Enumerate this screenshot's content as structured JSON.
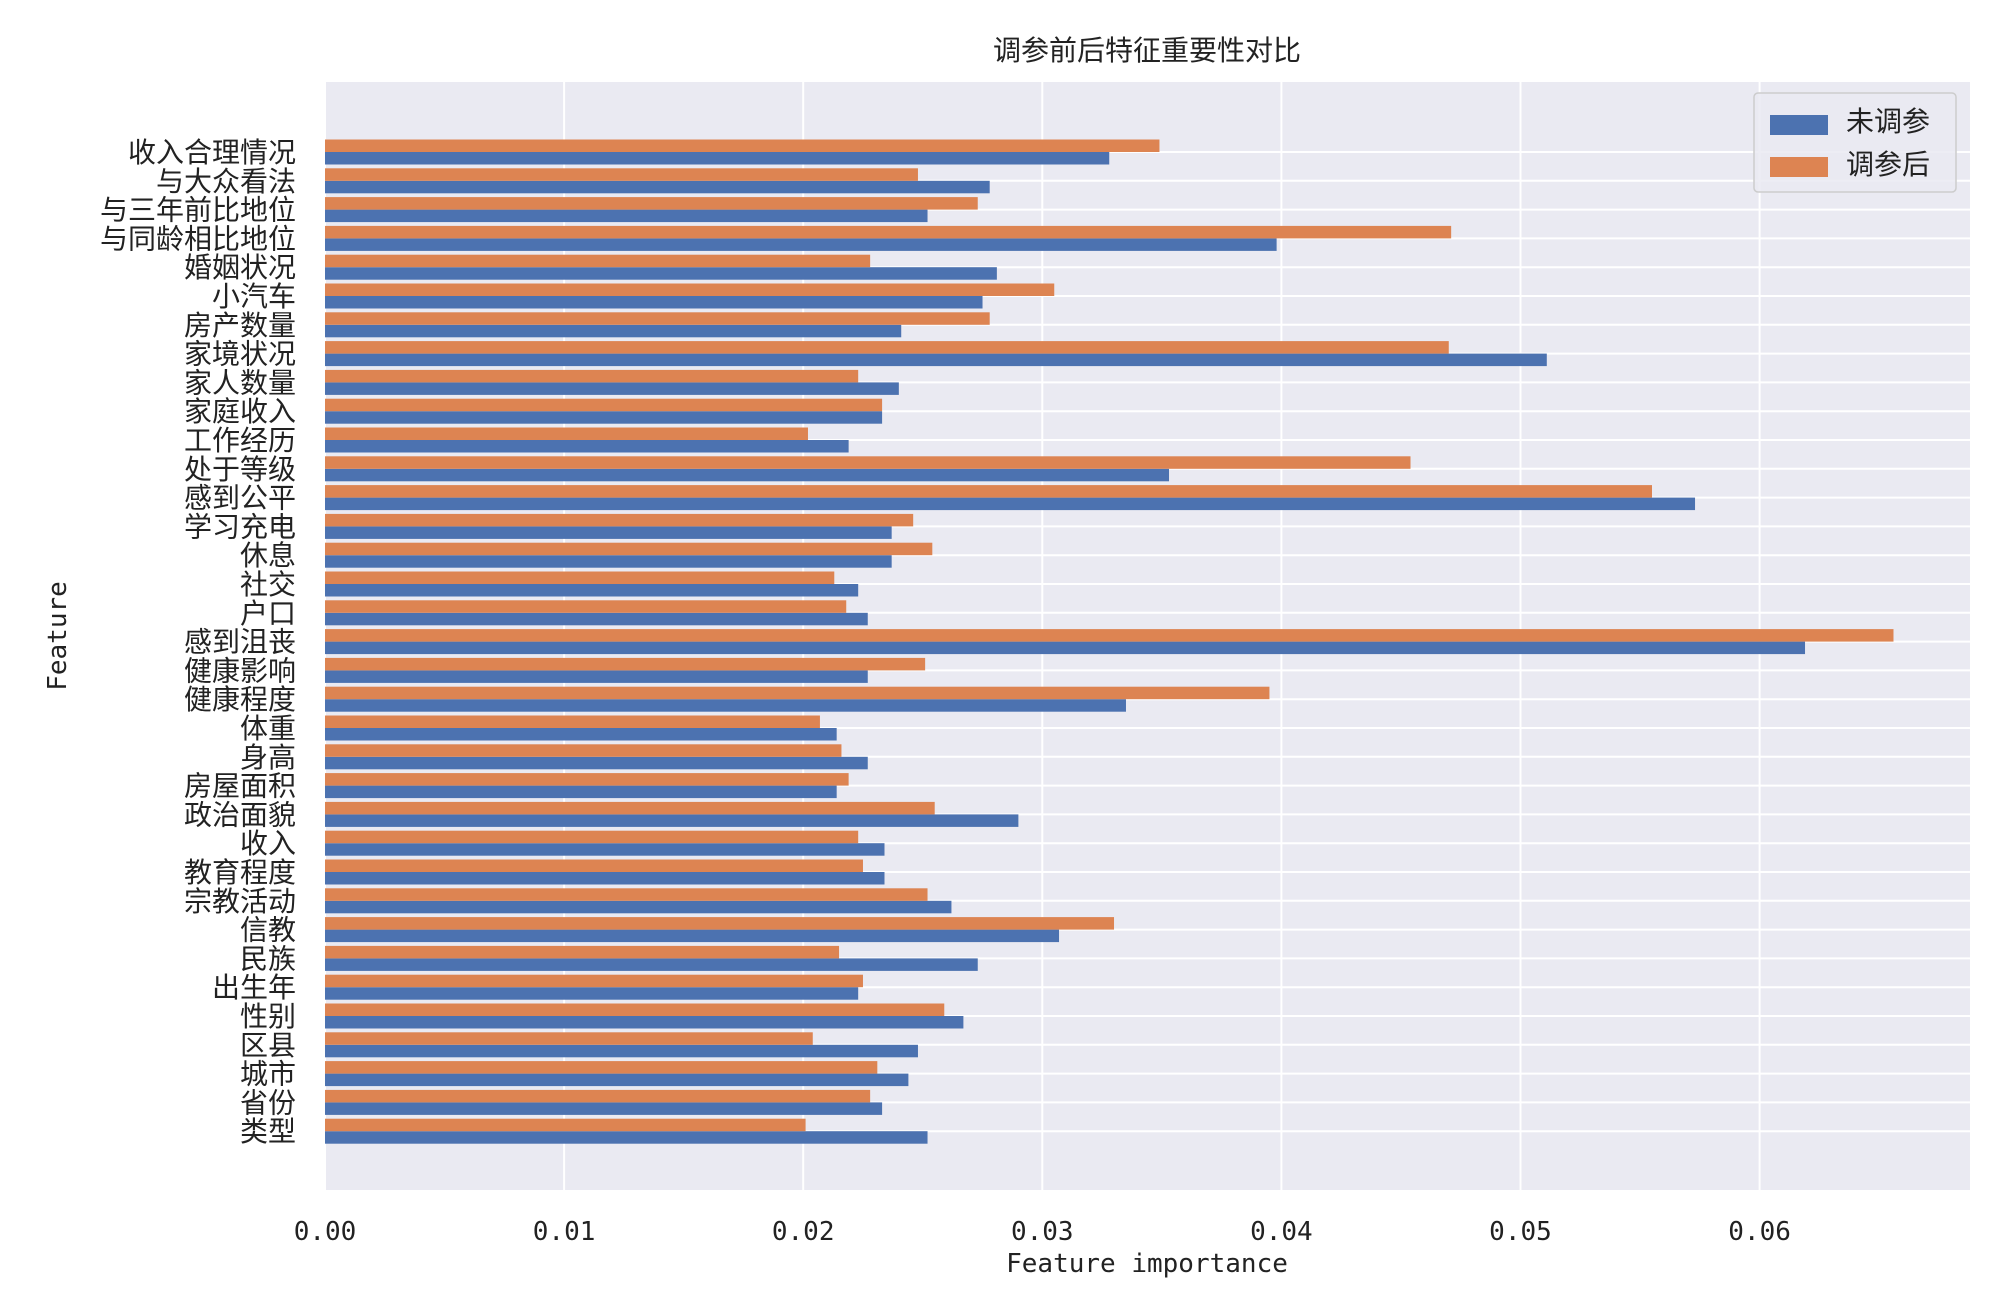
{
  "chart_data": {
    "type": "bar",
    "orientation": "horizontal",
    "title": "调参前后特征重要性对比",
    "xlabel": "Feature importance",
    "ylabel": "Feature",
    "xlim": [
      0,
      0.0688
    ],
    "xticks": [
      "0.00",
      "0.01",
      "0.02",
      "0.03",
      "0.04",
      "0.05",
      "0.06"
    ],
    "grid": true,
    "legend_position": "top-right",
    "categories": [
      "收入合理情况",
      "与大众看法",
      "与三年前比地位",
      "与同龄相比地位",
      "婚姻状况",
      "小汽车",
      "房产数量",
      "家境状况",
      "家人数量",
      "家庭收入",
      "工作经历",
      "处于等级",
      "感到公平",
      "学习充电",
      "休息",
      "社交",
      "户口",
      "感到沮丧",
      "健康影响",
      "健康程度",
      "体重",
      "身高",
      "房屋面积",
      "政治面貌",
      "收入",
      "教育程度",
      "宗教活动",
      "信教",
      "民族",
      "出生年",
      "性别",
      "区县",
      "城市",
      "省份",
      "类型"
    ],
    "series": [
      {
        "name": "未调参",
        "color": "#4c72b0",
        "values": [
          0.0328,
          0.0278,
          0.0252,
          0.0398,
          0.0281,
          0.0275,
          0.0241,
          0.0511,
          0.024,
          0.0233,
          0.0219,
          0.0353,
          0.0573,
          0.0237,
          0.0237,
          0.0223,
          0.0227,
          0.0619,
          0.0227,
          0.0335,
          0.0214,
          0.0227,
          0.0214,
          0.029,
          0.0234,
          0.0234,
          0.0262,
          0.0307,
          0.0273,
          0.0223,
          0.0267,
          0.0248,
          0.0244,
          0.0233,
          0.0252
        ]
      },
      {
        "name": "调参后",
        "color": "#dd8452",
        "values": [
          0.0349,
          0.0248,
          0.0273,
          0.0471,
          0.0228,
          0.0305,
          0.0278,
          0.047,
          0.0223,
          0.0233,
          0.0202,
          0.0454,
          0.0555,
          0.0246,
          0.0254,
          0.0213,
          0.0218,
          0.0656,
          0.0251,
          0.0395,
          0.0207,
          0.0216,
          0.0219,
          0.0255,
          0.0223,
          0.0225,
          0.0252,
          0.033,
          0.0215,
          0.0225,
          0.0259,
          0.0204,
          0.0231,
          0.0228,
          0.0201
        ]
      }
    ]
  }
}
